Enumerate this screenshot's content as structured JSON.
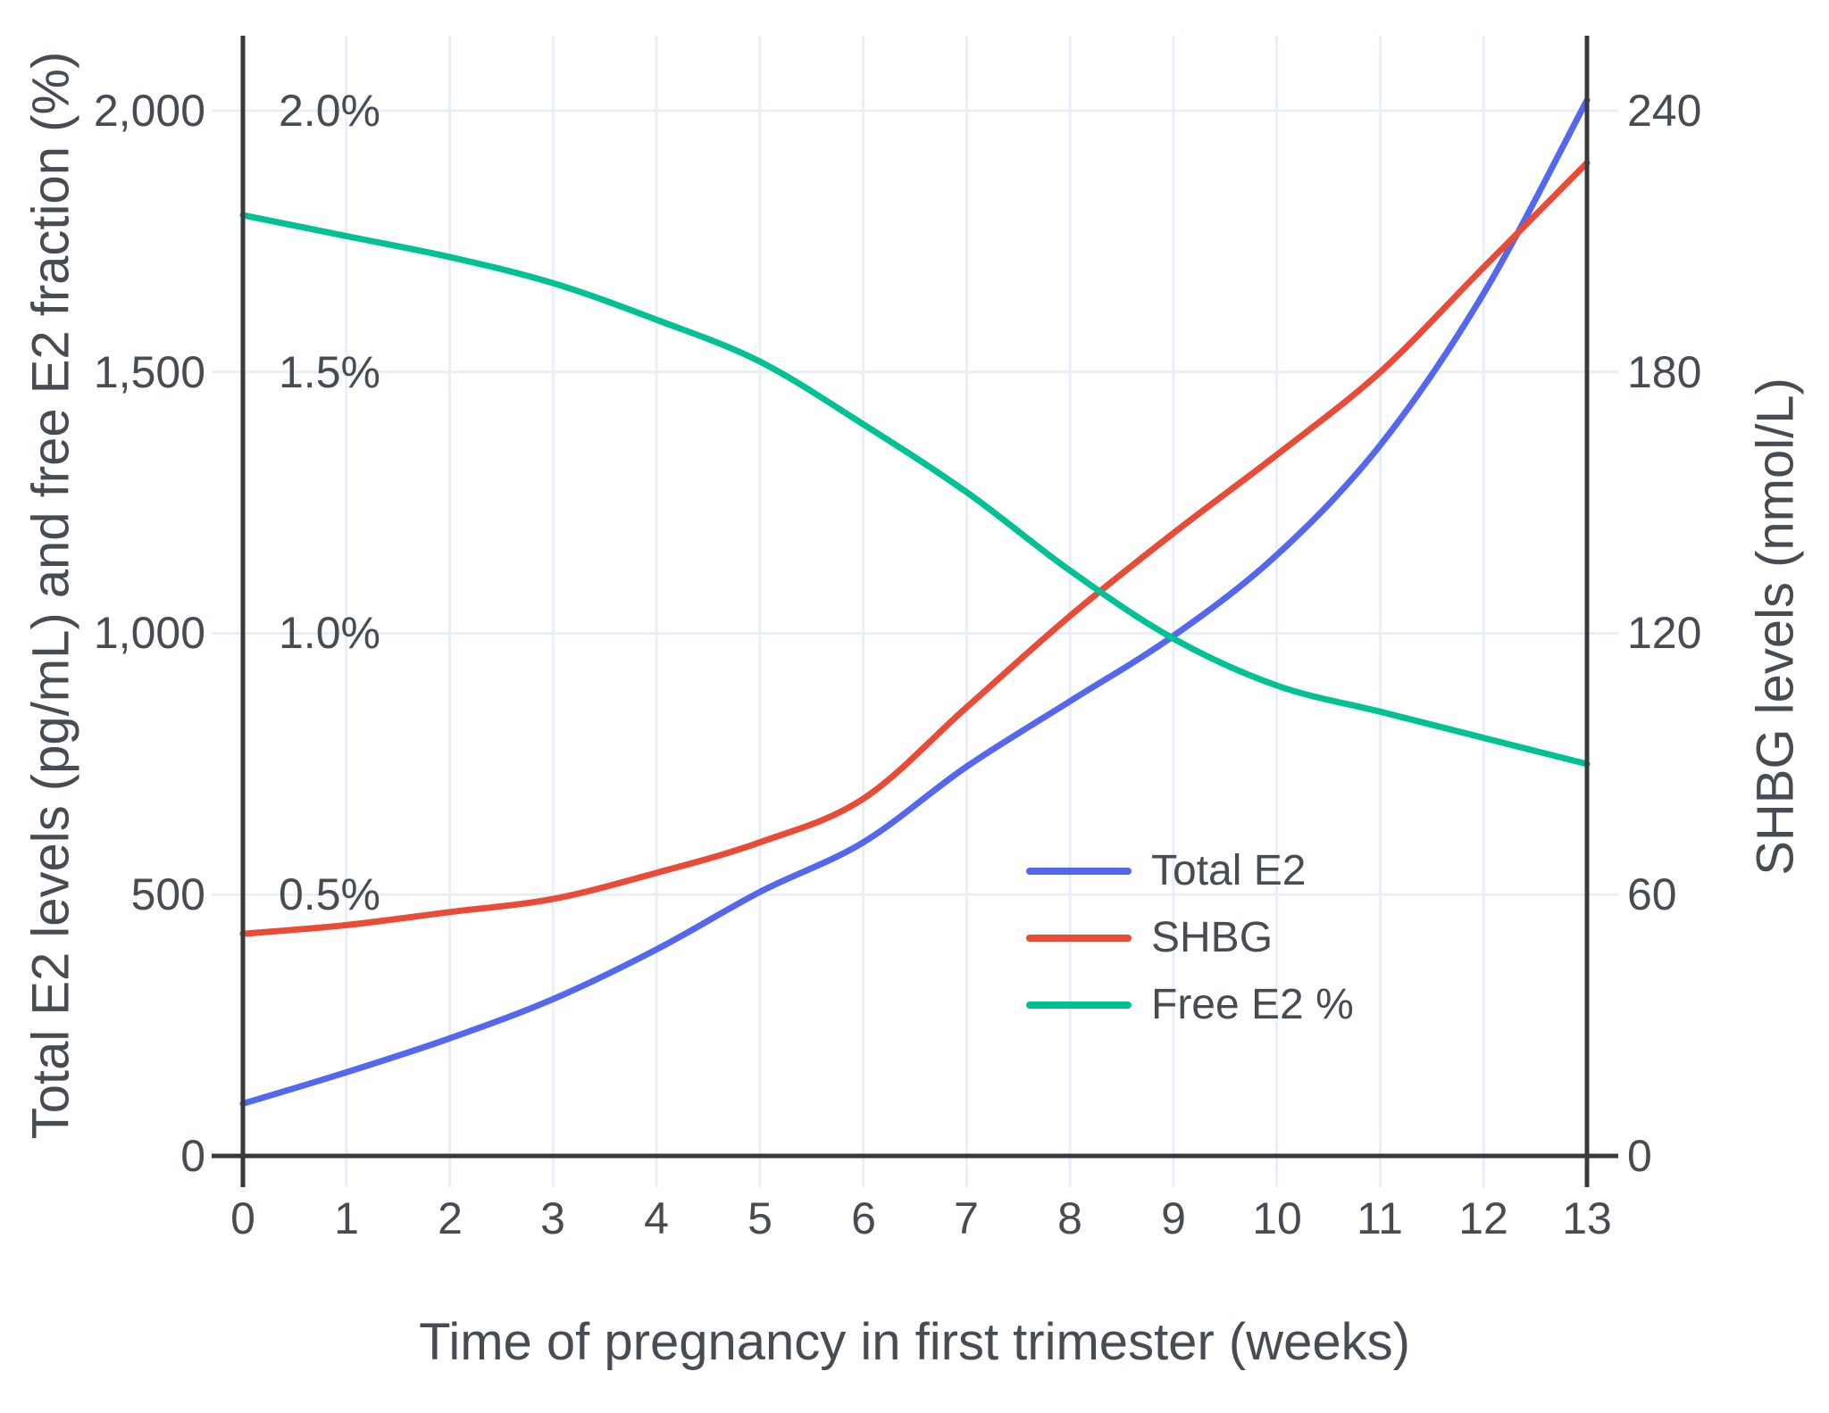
{
  "chart_data": {
    "type": "line",
    "x": [
      0,
      1,
      2,
      3,
      4,
      5,
      6,
      7,
      8,
      9,
      10,
      11,
      12,
      13
    ],
    "xlabel": "Time of pregnancy in first trimester (weeks)",
    "ylabel_left": "Total E2 levels (pg/mL) and free E2 fraction (%)",
    "ylabel_right": "SHBG levels (nmol/L)",
    "ylim_left": [
      0,
      2145
    ],
    "ylim_right": [
      0,
      257.4
    ],
    "grid": true,
    "legend_position": "inside-right",
    "series": [
      {
        "name": "Total E2",
        "axis": "left",
        "units": "pg/mL",
        "color": "#5468EF",
        "values": [
          100,
          160,
          225,
          300,
          395,
          505,
          600,
          745,
          870,
          995,
          1150,
          1360,
          1650,
          2020
        ]
      },
      {
        "name": "SHBG",
        "axis": "right",
        "units": "nmol/L",
        "color": "#E94B37",
        "values": [
          51,
          53,
          56,
          59,
          65,
          72,
          82,
          103,
          124,
          143,
          161,
          180,
          204,
          228
        ]
      },
      {
        "name": "Free E2 %",
        "axis": "left_pct",
        "units": "%",
        "color": "#00C194",
        "values": [
          1.8,
          1.76,
          1.72,
          1.67,
          1.6,
          1.52,
          1.4,
          1.27,
          1.12,
          0.99,
          0.9,
          0.85,
          0.8,
          0.75
        ]
      }
    ]
  },
  "axes": {
    "left": {
      "ticks": [
        "0",
        "500",
        "1,000",
        "1,500",
        "2,000"
      ],
      "pct_ticks": [
        "0.5%",
        "1.0%",
        "1.5%",
        "2.0%"
      ]
    },
    "right": {
      "ticks": [
        "0",
        "60",
        "120",
        "180",
        "240"
      ]
    },
    "x": {
      "ticks": [
        "0",
        "1",
        "2",
        "3",
        "4",
        "5",
        "6",
        "7",
        "8",
        "9",
        "10",
        "11",
        "12",
        "13"
      ]
    }
  },
  "titles": {
    "x_axis": "Time of pregnancy in first trimester (weeks)",
    "y_axis_left": "Total E2 levels (pg/mL) and free E2 fraction (%)",
    "y_axis_right": "SHBG levels (nmol/L)"
  },
  "colors": {
    "grid": "#E9EEF8",
    "axis_line": "#36393d",
    "text": "#474c52",
    "background": "#ffffff"
  }
}
